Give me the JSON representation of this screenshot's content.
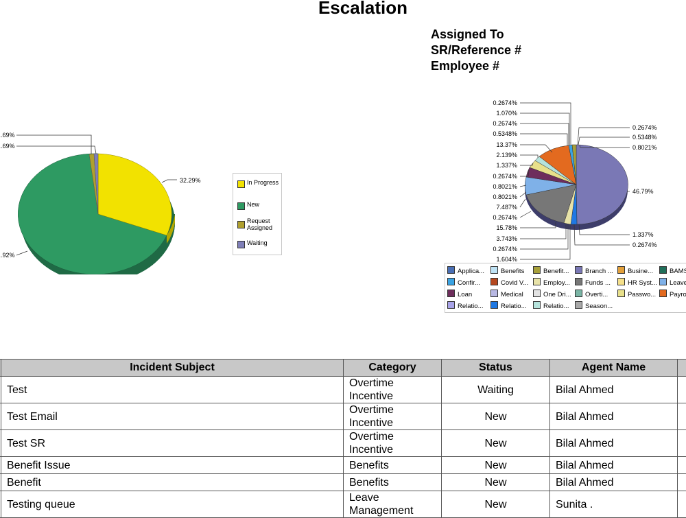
{
  "report": {
    "title": "Escalation",
    "subtitle_lines": [
      "Assigned To",
      "SR/Reference #",
      "Employee #"
    ]
  },
  "status_chart": {
    "slice_labels": [
      "32.29%",
      "...92%",
      "...69%",
      "...69%"
    ],
    "legend": [
      {
        "label": "In Progress",
        "color": "#f2e200"
      },
      {
        "label": "New",
        "color": "#2e9a62"
      },
      {
        "label": "Request Assigned",
        "color": "#b0a02e"
      },
      {
        "label": "Waiting",
        "color": "#7f7fb8"
      }
    ]
  },
  "category_chart": {
    "left_labels": [
      "0.2674%",
      "1.070%",
      "0.2674%",
      "0.5348%",
      "13.37%",
      "2.139%",
      "1.337%",
      "0.2674%",
      "0.8021%",
      "0.8021%",
      "7.487%",
      "0.2674%",
      "15.78%",
      "3.743%",
      "0.2674%",
      "1.604%"
    ],
    "right_labels": [
      "0.2674%",
      "0.5348%",
      "0.8021%",
      "46.79%",
      "1.337%",
      "0.2674%"
    ],
    "legend": [
      {
        "label": "Applica...",
        "color": "#4a6fb5"
      },
      {
        "label": "Benefits",
        "color": "#bfe3f5"
      },
      {
        "label": "Benefit...",
        "color": "#a7a03a"
      },
      {
        "label": "Branch ...",
        "color": "#7a78b5"
      },
      {
        "label": "Busine...",
        "color": "#e3a03a"
      },
      {
        "label": "BAMS",
        "color": "#1f6f5a"
      },
      {
        "label": "Confir...",
        "color": "#3aa3e3"
      },
      {
        "label": "Covid V...",
        "color": "#b5481f"
      },
      {
        "label": "Employ...",
        "color": "#e8e3a8"
      },
      {
        "label": "Funds ...",
        "color": "#777777"
      },
      {
        "label": "HR Syst...",
        "color": "#f5e08a"
      },
      {
        "label": "Leave",
        "color": "#7fb1e8"
      },
      {
        "label": "Loan",
        "color": "#6e2d5c"
      },
      {
        "label": "Medical",
        "color": "#b8b8e3"
      },
      {
        "label": "One Dri...",
        "color": "#e3e3e3"
      },
      {
        "label": "Overti...",
        "color": "#7ab5a5"
      },
      {
        "label": "Passwo...",
        "color": "#e8e08a"
      },
      {
        "label": "Payro",
        "color": "#e36a1f"
      },
      {
        "label": "Relatio...",
        "color": "#a8a3e8"
      },
      {
        "label": "Relatio...",
        "color": "#1f78e3"
      },
      {
        "label": "Relatio...",
        "color": "#b5e3dc"
      },
      {
        "label": "Season...",
        "color": "#a8a8a8"
      }
    ]
  },
  "table": {
    "headers": [
      "Incident Subject",
      "Category",
      "Status",
      "Agent Name"
    ],
    "rows": [
      {
        "subject": "Test",
        "category": "Overtime Incentive",
        "status": "Waiting",
        "agent": "Bilal Ahmed"
      },
      {
        "subject": "Test Email",
        "category": "Overtime Incentive",
        "status": "New",
        "agent": "Bilal Ahmed"
      },
      {
        "subject": "Test SR",
        "category": "Overtime Incentive",
        "status": "New",
        "agent": "Bilal Ahmed"
      },
      {
        "subject": "Benefit Issue",
        "category": "Benefits",
        "status": "New",
        "agent": "Bilal Ahmed"
      },
      {
        "subject": "Benefit",
        "category": "Benefits",
        "status": "New",
        "agent": "Bilal Ahmed"
      },
      {
        "subject": "Testing queue",
        "category": "Leave Management",
        "status": "New",
        "agent": "Sunita ."
      }
    ]
  }
}
